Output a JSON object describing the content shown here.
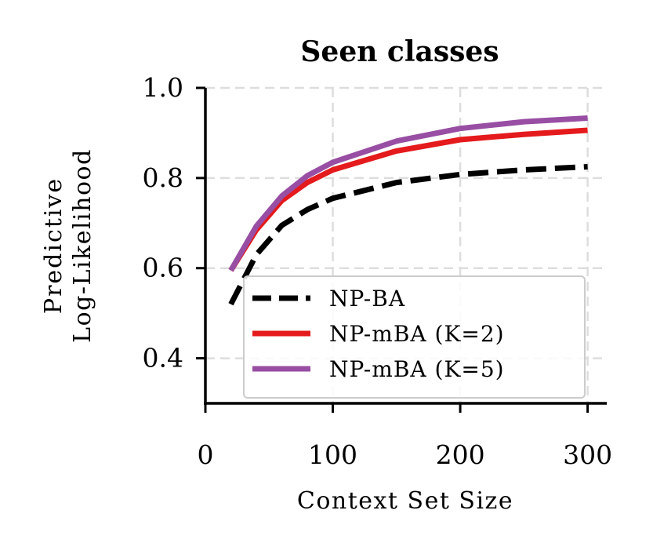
{
  "chart_data": {
    "type": "line",
    "title": "Seen classes",
    "xlabel": "Context Set Size",
    "ylabel_lines": [
      "Predictive",
      "Log-Likelihood"
    ],
    "xlim": [
      0,
      315
    ],
    "ylim": [
      0.3,
      1.0
    ],
    "xticks": [
      0,
      100,
      200,
      300
    ],
    "xtick_labels": [
      "0",
      "100",
      "200",
      "300"
    ],
    "yticks": [
      0.4,
      0.6,
      0.8,
      1.0
    ],
    "ytick_labels": [
      "0.4",
      "0.6",
      "0.8",
      "1.0"
    ],
    "grid": true,
    "legend_position": "lower-right",
    "series": [
      {
        "name": "NP-BA",
        "color": "#000000",
        "style": "dashed",
        "x": [
          20,
          40,
          60,
          80,
          100,
          150,
          200,
          250,
          300
        ],
        "y": [
          0.52,
          0.63,
          0.695,
          0.73,
          0.755,
          0.79,
          0.808,
          0.818,
          0.825
        ]
      },
      {
        "name": "NP-mBA (K=2)",
        "color": "#e41a1c",
        "style": "solid",
        "x": [
          20,
          40,
          60,
          80,
          100,
          150,
          200,
          250,
          300
        ],
        "y": [
          0.595,
          0.685,
          0.75,
          0.79,
          0.818,
          0.86,
          0.885,
          0.897,
          0.906
        ]
      },
      {
        "name": "NP-mBA (K=5)",
        "color": "#984ea3",
        "style": "solid",
        "x": [
          20,
          40,
          60,
          80,
          100,
          150,
          200,
          250,
          300
        ],
        "y": [
          0.595,
          0.693,
          0.76,
          0.805,
          0.835,
          0.882,
          0.91,
          0.925,
          0.933
        ]
      }
    ]
  }
}
